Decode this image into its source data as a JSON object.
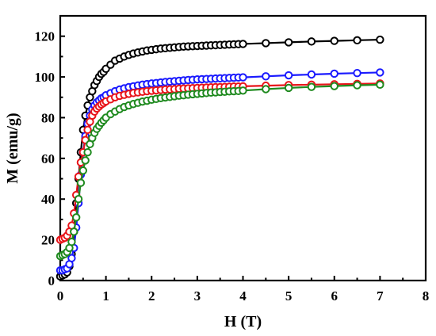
{
  "chart_data": {
    "type": "line",
    "title": "",
    "xlabel": "H (T)",
    "ylabel": "M (emu/g)",
    "xlim": [
      0,
      8
    ],
    "ylim": [
      0,
      130
    ],
    "xticks": [
      0,
      1,
      2,
      3,
      4,
      5,
      6,
      7,
      8
    ],
    "yticks": [
      0,
      20,
      40,
      60,
      80,
      100,
      120
    ],
    "grid": false,
    "legend": "none",
    "marker": "open-circle",
    "series": [
      {
        "color": "#000000",
        "x": [
          0,
          0.05,
          0.1,
          0.15,
          0.2,
          0.25,
          0.3,
          0.35,
          0.4,
          0.45,
          0.5,
          0.55,
          0.6,
          0.65,
          0.7,
          0.75,
          0.8,
          0.85,
          0.9,
          0.95,
          1.0,
          1.1,
          1.2,
          1.3,
          1.4,
          1.5,
          1.6,
          1.7,
          1.8,
          1.9,
          2.0,
          2.1,
          2.2,
          2.3,
          2.4,
          2.5,
          2.6,
          2.7,
          2.8,
          2.9,
          3.0,
          3.1,
          3.2,
          3.3,
          3.4,
          3.5,
          3.6,
          3.7,
          3.8,
          3.9,
          4.0,
          4.5,
          5.0,
          5.5,
          6.0,
          6.5,
          7.0
        ],
        "y": [
          2,
          2.5,
          3,
          4,
          7,
          13,
          24,
          38,
          50,
          63,
          74,
          81,
          86,
          90,
          93,
          96,
          98,
          100,
          101.5,
          102.5,
          104,
          106,
          108,
          109,
          110,
          110.8,
          111.5,
          112,
          112.5,
          113,
          113.3,
          113.6,
          113.9,
          114.1,
          114.3,
          114.5,
          114.7,
          114.9,
          115,
          115.1,
          115.2,
          115.3,
          115.4,
          115.5,
          115.6,
          115.7,
          115.8,
          115.9,
          116,
          116.1,
          116.2,
          116.6,
          117,
          117.4,
          117.7,
          118,
          118.3
        ]
      },
      {
        "color": "#1a1aff",
        "x": [
          0,
          0.05,
          0.1,
          0.15,
          0.2,
          0.25,
          0.3,
          0.35,
          0.4,
          0.45,
          0.5,
          0.55,
          0.6,
          0.65,
          0.7,
          0.75,
          0.8,
          0.85,
          0.9,
          0.95,
          1.0,
          1.1,
          1.2,
          1.3,
          1.4,
          1.5,
          1.6,
          1.7,
          1.8,
          1.9,
          2.0,
          2.1,
          2.2,
          2.3,
          2.4,
          2.5,
          2.6,
          2.7,
          2.8,
          2.9,
          3.0,
          3.1,
          3.2,
          3.3,
          3.4,
          3.5,
          3.6,
          3.7,
          3.8,
          3.9,
          4.0,
          4.5,
          5.0,
          5.5,
          6.0,
          6.5,
          7.0
        ],
        "y": [
          5,
          5,
          5.5,
          6,
          8,
          11,
          16,
          26,
          38,
          52,
          63,
          71,
          77,
          81,
          84,
          86,
          87.5,
          88.5,
          89.5,
          90,
          91,
          92,
          93,
          93.8,
          94.4,
          95,
          95.4,
          95.8,
          96.2,
          96.5,
          96.8,
          97,
          97.3,
          97.5,
          97.7,
          97.9,
          98.1,
          98.3,
          98.5,
          98.6,
          98.8,
          98.9,
          99,
          99.1,
          99.2,
          99.3,
          99.4,
          99.5,
          99.6,
          99.7,
          99.8,
          100.3,
          100.8,
          101.2,
          101.6,
          101.9,
          102.2
        ]
      },
      {
        "color": "#e8141a",
        "x": [
          0,
          0.05,
          0.1,
          0.15,
          0.2,
          0.25,
          0.3,
          0.35,
          0.4,
          0.45,
          0.5,
          0.55,
          0.6,
          0.65,
          0.7,
          0.75,
          0.8,
          0.85,
          0.9,
          0.95,
          1.0,
          1.1,
          1.2,
          1.3,
          1.4,
          1.5,
          1.6,
          1.7,
          1.8,
          1.9,
          2.0,
          2.1,
          2.2,
          2.3,
          2.4,
          2.5,
          2.6,
          2.7,
          2.8,
          2.9,
          3.0,
          3.1,
          3.2,
          3.3,
          3.4,
          3.5,
          3.6,
          3.7,
          3.8,
          3.9,
          4.0,
          4.5,
          5.0,
          5.5,
          6.0,
          6.5,
          7.0
        ],
        "y": [
          20,
          20.5,
          21,
          22,
          24,
          27,
          33,
          42,
          51,
          58,
          63,
          69,
          74,
          78,
          81,
          83,
          84.5,
          85.5,
          86.5,
          87.2,
          88,
          89,
          90,
          90.7,
          91.2,
          91.7,
          92.1,
          92.4,
          92.7,
          93,
          93.2,
          93.4,
          93.6,
          93.8,
          93.9,
          94,
          94.2,
          94.3,
          94.4,
          94.5,
          94.6,
          94.7,
          94.8,
          94.9,
          95,
          95,
          95.1,
          95.2,
          95.3,
          95.3,
          95.4,
          95.7,
          96,
          96.2,
          96.4,
          96.6,
          96.8
        ]
      },
      {
        "color": "#1f8a1f",
        "x": [
          0,
          0.05,
          0.1,
          0.15,
          0.2,
          0.25,
          0.3,
          0.35,
          0.4,
          0.45,
          0.5,
          0.55,
          0.6,
          0.65,
          0.7,
          0.75,
          0.8,
          0.85,
          0.9,
          0.95,
          1.0,
          1.1,
          1.2,
          1.3,
          1.4,
          1.5,
          1.6,
          1.7,
          1.8,
          1.9,
          2.0,
          2.1,
          2.2,
          2.3,
          2.4,
          2.5,
          2.6,
          2.7,
          2.8,
          2.9,
          3.0,
          3.1,
          3.2,
          3.3,
          3.4,
          3.5,
          3.6,
          3.7,
          3.8,
          3.9,
          4.0,
          4.5,
          5.0,
          5.5,
          6.0,
          6.5,
          7.0
        ],
        "y": [
          12,
          12.5,
          13,
          14,
          16,
          19,
          24,
          31,
          40,
          48,
          54,
          59,
          63,
          67,
          70,
          72.5,
          74.5,
          76,
          77.5,
          78.7,
          80,
          81.7,
          83,
          84.2,
          85.2,
          86,
          86.7,
          87.3,
          87.9,
          88.3,
          88.8,
          89.2,
          89.6,
          89.9,
          90.2,
          90.5,
          90.8,
          91,
          91.3,
          91.5,
          91.7,
          91.9,
          92.1,
          92.3,
          92.4,
          92.6,
          92.7,
          92.9,
          93,
          93.1,
          93.3,
          94,
          94.6,
          95.1,
          95.5,
          95.9,
          96.2
        ]
      }
    ]
  }
}
